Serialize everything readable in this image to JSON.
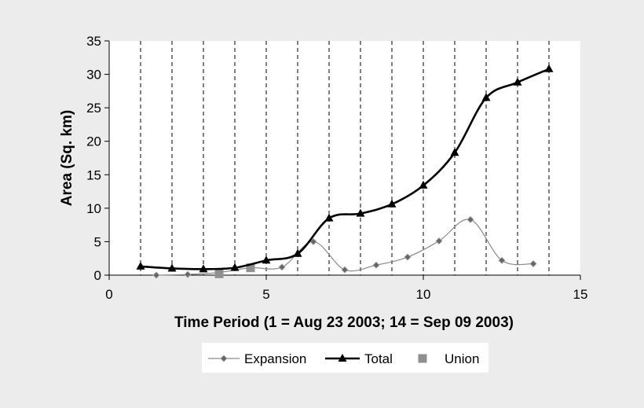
{
  "chart_data": {
    "type": "line",
    "xlabel": "Time Period (1 = Aug 23 2003; 14 = Sep 09 2003)",
    "ylabel": "Area (Sq. km)",
    "xlim": [
      0,
      15
    ],
    "ylim": [
      0,
      35
    ],
    "xticks": [
      0,
      5,
      10,
      15
    ],
    "yticks": [
      0,
      5,
      10,
      15,
      20,
      25,
      30,
      35
    ],
    "grid": "vertical dashed lines at x = 1 through 14",
    "legend_position": "bottom",
    "series": [
      {
        "name": "Expansion",
        "color": "#8a8a8a",
        "marker": "diamond",
        "line": "thin smoothed",
        "points": [
          [
            1.5,
            0.0
          ],
          [
            2.5,
            0.1
          ],
          [
            3.5,
            0.4
          ],
          [
            4.5,
            1.1
          ],
          [
            5.5,
            1.2
          ],
          [
            6.5,
            5.0
          ],
          [
            7.5,
            0.8
          ],
          [
            8.5,
            1.5
          ],
          [
            9.5,
            2.7
          ],
          [
            10.5,
            5.1
          ],
          [
            11.5,
            8.3
          ],
          [
            12.5,
            2.2
          ],
          [
            13.5,
            1.7
          ]
        ]
      },
      {
        "name": "Total",
        "color": "#000000",
        "marker": "triangle",
        "line": "thick smoothed",
        "points": [
          [
            1,
            1.3
          ],
          [
            2,
            1.0
          ],
          [
            3,
            0.9
          ],
          [
            4,
            1.1
          ],
          [
            5,
            2.2
          ],
          [
            6,
            3.2
          ],
          [
            7,
            8.5
          ],
          [
            8,
            9.2
          ],
          [
            9,
            10.6
          ],
          [
            10,
            13.4
          ],
          [
            11,
            18.3
          ],
          [
            12,
            26.5
          ],
          [
            13,
            28.8
          ],
          [
            14,
            30.8
          ]
        ]
      },
      {
        "name": "Union",
        "color": "#8f8f8f",
        "marker": "square",
        "line": "none",
        "points": [
          [
            3.5,
            0.2
          ],
          [
            4.5,
            1.1
          ]
        ]
      }
    ]
  }
}
